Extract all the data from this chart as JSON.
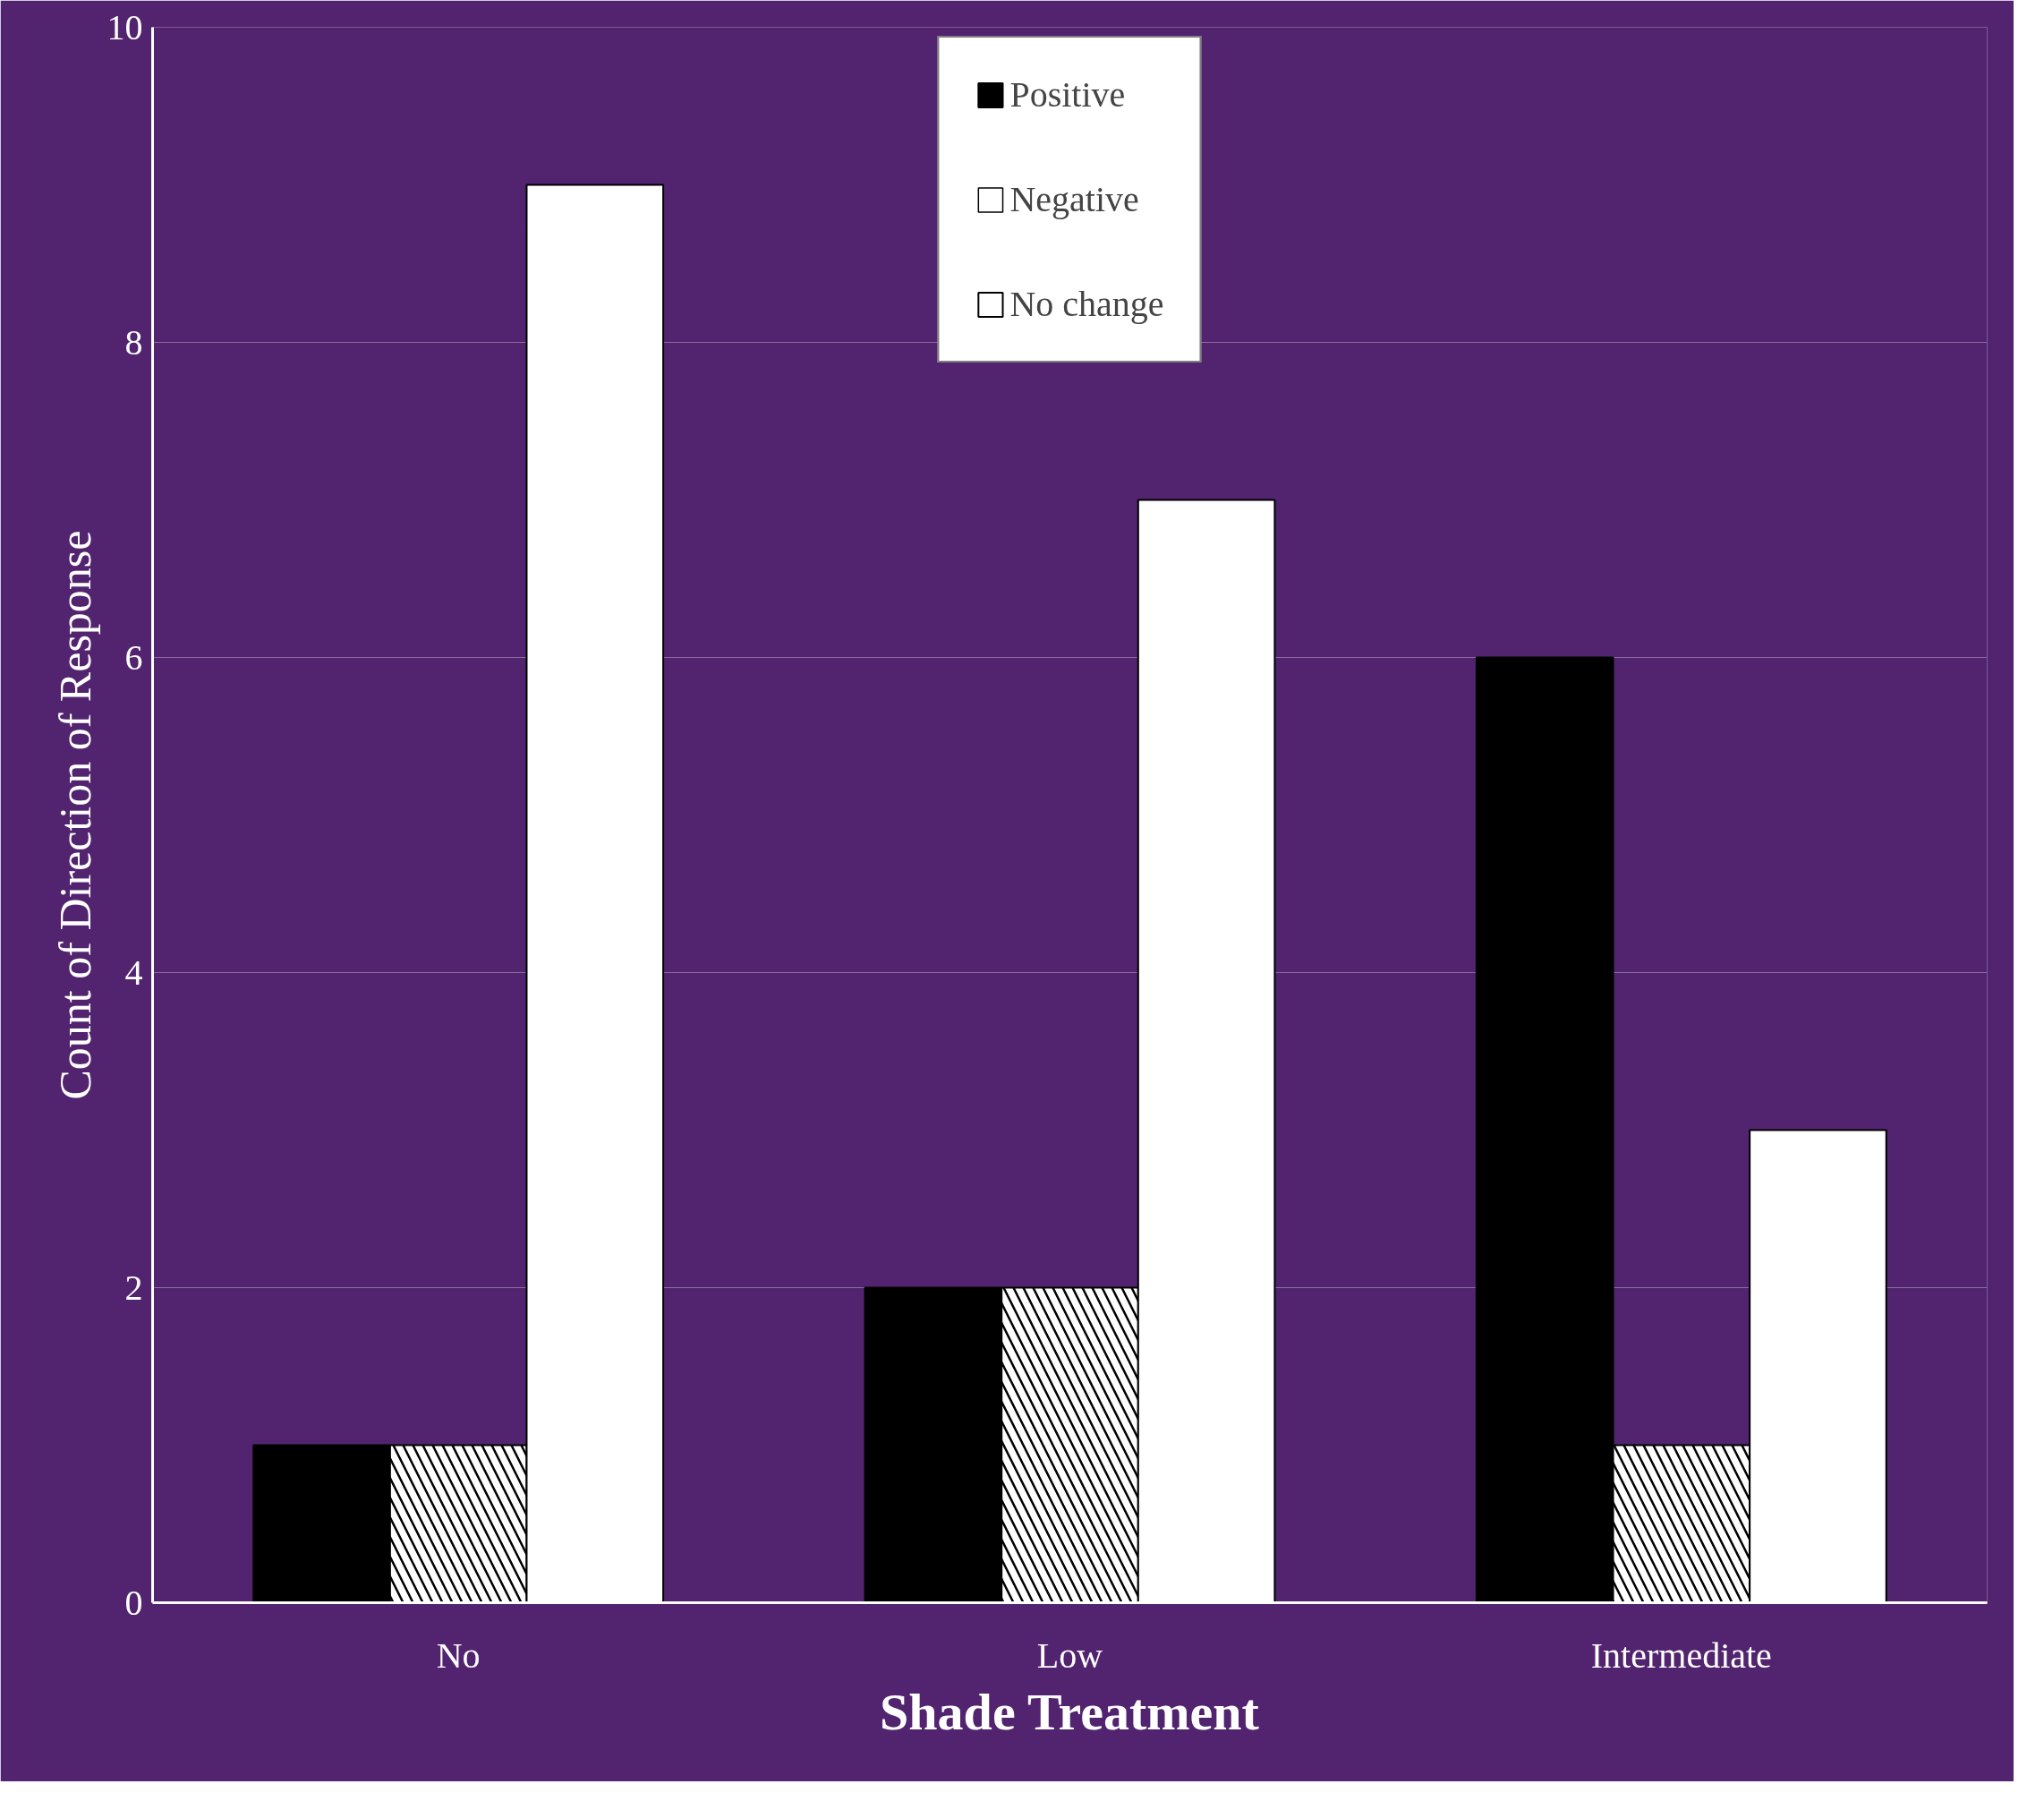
{
  "chart_data": {
    "type": "bar",
    "xlabel": "Shade Treatment",
    "ylabel": "Count of Direction of Response",
    "categories": [
      "No",
      "Low",
      "Intermediate"
    ],
    "series": [
      {
        "name": "Positive",
        "color": "#000000",
        "values": [
          1,
          2,
          6
        ]
      },
      {
        "name": "Negative",
        "color": "#ffffff",
        "values": [
          1,
          2,
          1
        ]
      },
      {
        "name": "No change",
        "color": "#ffffff",
        "values": [
          9,
          7,
          3
        ]
      }
    ],
    "ylim": [
      0,
      10
    ],
    "yticks": [
      0,
      2,
      4,
      6,
      8,
      10
    ],
    "grid": "y",
    "legend": "top"
  }
}
